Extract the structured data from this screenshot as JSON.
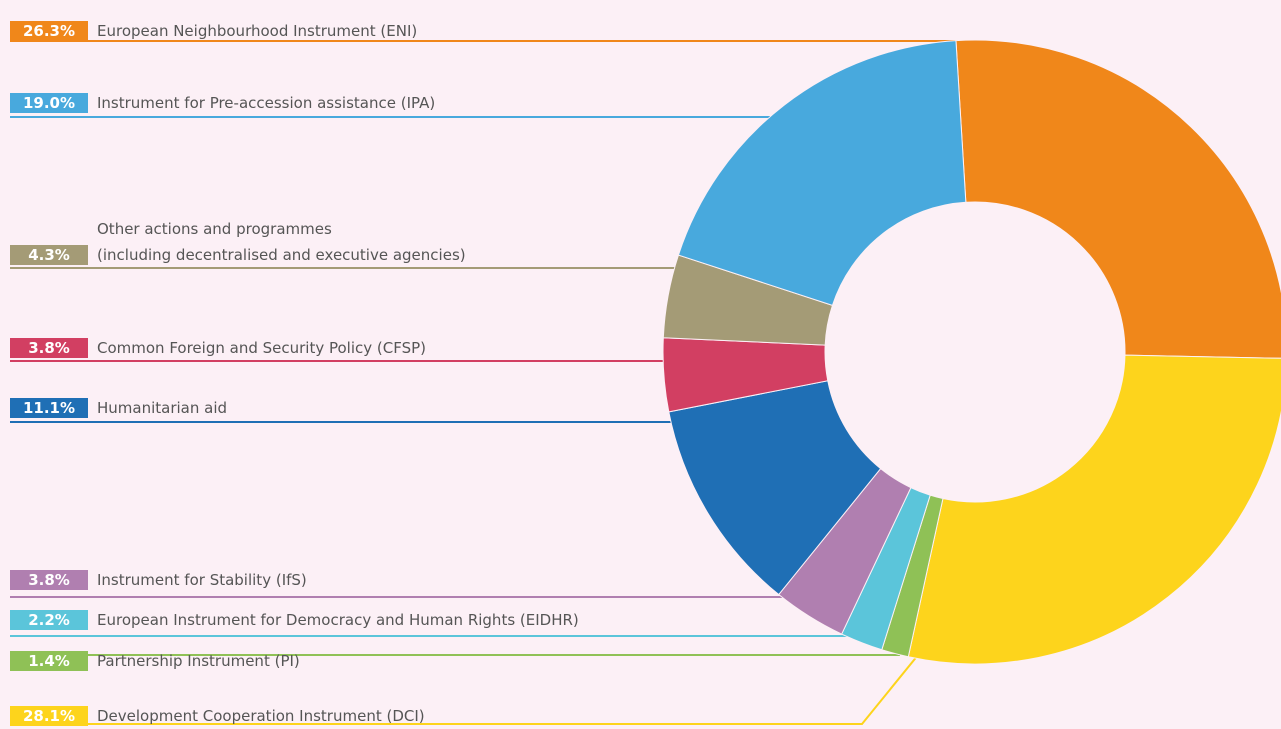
{
  "chart_data": {
    "type": "pie",
    "categories": [
      "European Neighbourhood Instrument (ENI)",
      "Instrument for Pre-accession assistance (IPA)",
      "Other actions and programmes\n(including decentralised and executive agencies)",
      "Common Foreign and Security Policy (CFSP)",
      "Humanitarian aid",
      "Instrument for Stability (IfS)",
      "European Instrument for Democracy and Human Rights (EIDHR)",
      "Partnership Instrument (PI)",
      "Development Cooperation Instrument (DCI)"
    ],
    "values": [
      26.3,
      19.0,
      4.3,
      3.8,
      11.1,
      3.8,
      2.2,
      1.4,
      28.1
    ],
    "value_labels": [
      "26.3%",
      "19.0%",
      "4.3%",
      "3.8%",
      "11.1%",
      "3.8%",
      "2.2%",
      "1.4%",
      "28.1%"
    ],
    "colors": [
      "#f0871a",
      "#48a9dd",
      "#a49b76",
      "#d23f62",
      "#1f6fb5",
      "#b07fb0",
      "#5bc5da",
      "#8fc156",
      "#fdd41c"
    ]
  }
}
